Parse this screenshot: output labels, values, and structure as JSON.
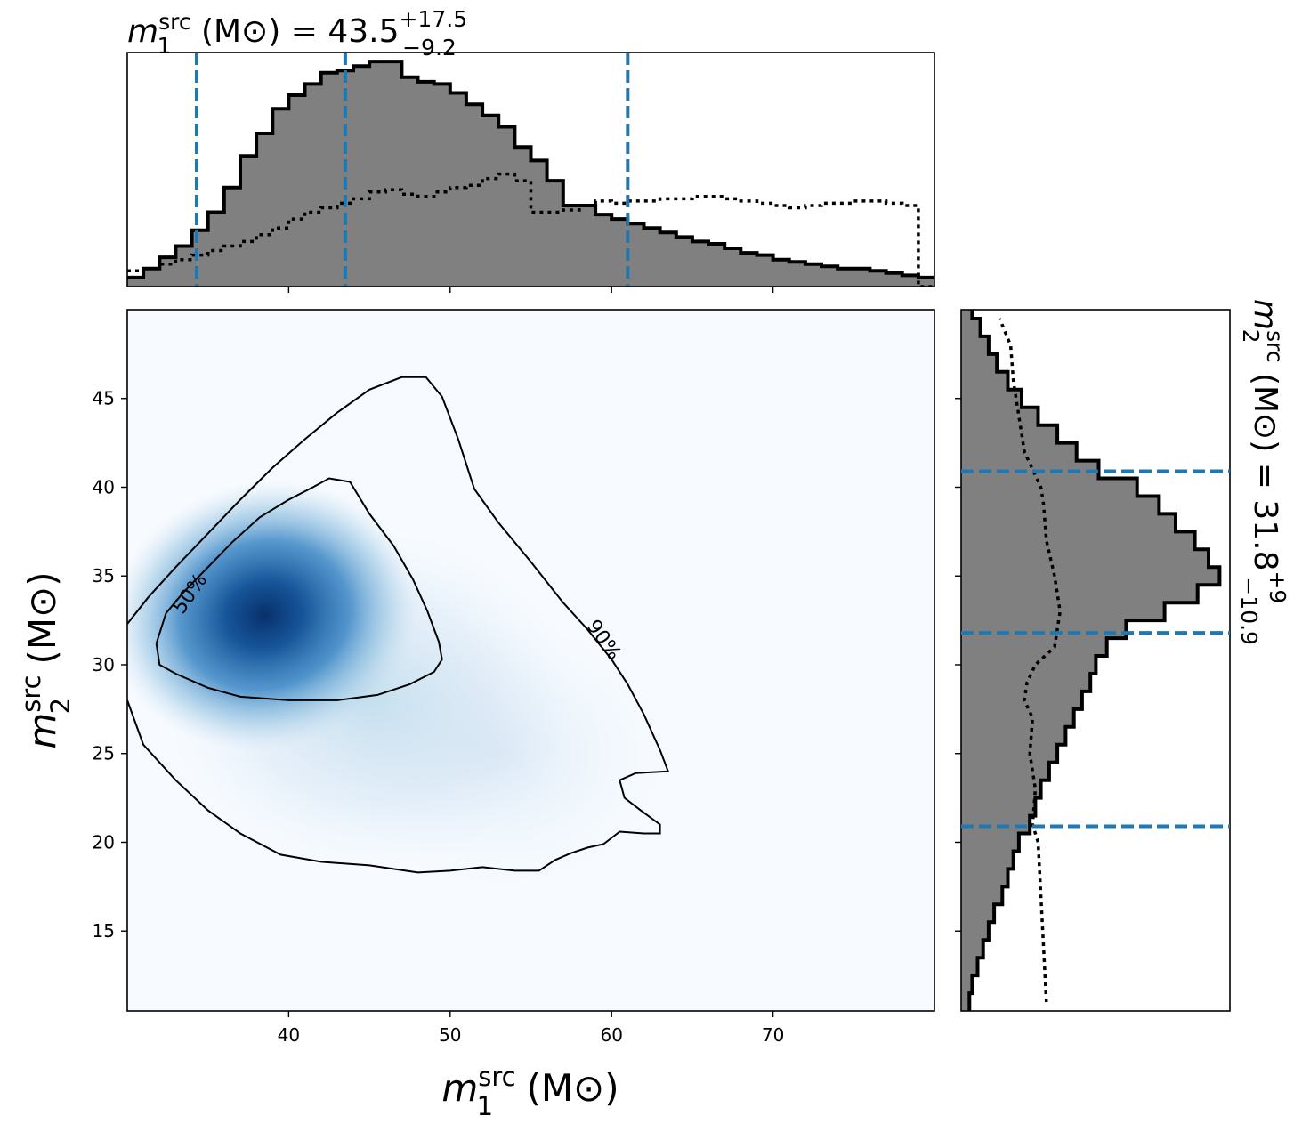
{
  "chart_data": {
    "type": "heatmap",
    "title": "",
    "x_symbol": "m",
    "x_subscript": "1",
    "x_superscript": "src",
    "x_unit": "(M⊙)",
    "y_symbol": "m",
    "y_subscript": "2",
    "y_superscript": "src",
    "y_unit": "(M⊙)",
    "xlim": [
      30,
      80
    ],
    "ylim": [
      10.5,
      50
    ],
    "x_ticks": [
      "40",
      "50",
      "60",
      "70"
    ],
    "y_ticks": [
      "15",
      "20",
      "25",
      "30",
      "35",
      "40",
      "45"
    ],
    "colormap": "Blues",
    "density_peak": {
      "m1": 38.5,
      "m2": 32.8
    },
    "contours": [
      {
        "label": "50%",
        "points": [
          [
            31.8,
            31.2
          ],
          [
            32.4,
            32.9
          ],
          [
            33.5,
            34.1
          ],
          [
            35.0,
            35.5
          ],
          [
            36.5,
            36.9
          ],
          [
            38.2,
            38.3
          ],
          [
            40.0,
            39.3
          ],
          [
            41.5,
            40.0
          ],
          [
            42.5,
            40.5
          ],
          [
            43.8,
            40.3
          ],
          [
            45.0,
            38.5
          ],
          [
            46.5,
            36.7
          ],
          [
            47.7,
            34.8
          ],
          [
            48.6,
            33.0
          ],
          [
            49.3,
            31.3
          ],
          [
            49.5,
            30.3
          ],
          [
            49.0,
            29.6
          ],
          [
            47.5,
            28.9
          ],
          [
            45.5,
            28.3
          ],
          [
            43.0,
            28.0
          ],
          [
            40.0,
            28.0
          ],
          [
            37.0,
            28.2
          ],
          [
            35.0,
            28.7
          ],
          [
            33.0,
            29.5
          ],
          [
            32.0,
            30.0
          ],
          [
            31.8,
            31.2
          ]
        ]
      },
      {
        "label": "90%",
        "points": [
          [
            30.0,
            32.3
          ],
          [
            31.3,
            33.8
          ],
          [
            33.0,
            35.5
          ],
          [
            35.0,
            37.4
          ],
          [
            37.0,
            39.3
          ],
          [
            39.0,
            41.1
          ],
          [
            41.0,
            42.7
          ],
          [
            43.0,
            44.2
          ],
          [
            45.0,
            45.5
          ],
          [
            47.0,
            46.2
          ],
          [
            48.5,
            46.2
          ],
          [
            49.5,
            45.1
          ],
          [
            50.5,
            42.7
          ],
          [
            51.5,
            39.9
          ],
          [
            53.0,
            38.0
          ],
          [
            55.0,
            35.8
          ],
          [
            57.0,
            33.5
          ],
          [
            58.5,
            32.0
          ],
          [
            60.0,
            30.3
          ],
          [
            61.0,
            28.9
          ],
          [
            62.0,
            27.2
          ],
          [
            63.0,
            25.2
          ],
          [
            63.5,
            24.0
          ],
          [
            61.5,
            23.9
          ],
          [
            60.5,
            23.5
          ],
          [
            60.8,
            22.5
          ],
          [
            61.8,
            21.8
          ],
          [
            63.0,
            21.0
          ],
          [
            63.0,
            20.5
          ],
          [
            62.0,
            20.5
          ],
          [
            60.5,
            20.6
          ],
          [
            59.5,
            19.9
          ],
          [
            58.5,
            19.7
          ],
          [
            57.5,
            19.4
          ],
          [
            56.5,
            19.0
          ],
          [
            55.5,
            18.4
          ],
          [
            54.0,
            18.4
          ],
          [
            52.0,
            18.6
          ],
          [
            50.0,
            18.4
          ],
          [
            48.0,
            18.3
          ],
          [
            45.0,
            18.7
          ],
          [
            42.0,
            18.9
          ],
          [
            39.5,
            19.3
          ],
          [
            37.0,
            20.5
          ],
          [
            35.0,
            21.8
          ],
          [
            33.0,
            23.5
          ],
          [
            31.0,
            25.5
          ],
          [
            30.0,
            28.0
          ]
        ]
      }
    ],
    "top_histogram": {
      "label": "m1",
      "annotation_symbol": "m",
      "annotation_subscript": "1",
      "annotation_superscript": "src",
      "annotation_unit": "(M⊙)",
      "annotation_median": "43.5",
      "annotation_plus": "+17.5",
      "annotation_minus": "−9.2",
      "quantile_lines": [
        34.3,
        43.5,
        61.0
      ],
      "bin_start": 30,
      "bin_width": 1,
      "posterior": [
        0.04,
        0.08,
        0.13,
        0.18,
        0.25,
        0.33,
        0.44,
        0.58,
        0.68,
        0.79,
        0.85,
        0.9,
        0.95,
        0.96,
        0.98,
        1.0,
        1.0,
        0.93,
        0.91,
        0.9,
        0.86,
        0.81,
        0.76,
        0.71,
        0.62,
        0.56,
        0.47,
        0.36,
        0.36,
        0.32,
        0.3,
        0.28,
        0.26,
        0.24,
        0.22,
        0.2,
        0.19,
        0.17,
        0.15,
        0.14,
        0.12,
        0.11,
        0.1,
        0.09,
        0.08,
        0.08,
        0.07,
        0.06,
        0.05,
        0.04
      ],
      "prior": [
        0.07,
        0.08,
        0.1,
        0.12,
        0.14,
        0.16,
        0.18,
        0.2,
        0.23,
        0.26,
        0.3,
        0.33,
        0.35,
        0.37,
        0.39,
        0.42,
        0.43,
        0.41,
        0.4,
        0.42,
        0.44,
        0.45,
        0.48,
        0.5,
        0.47,
        0.33,
        0.33,
        0.34,
        0.36,
        0.38,
        0.37,
        0.38,
        0.38,
        0.39,
        0.39,
        0.4,
        0.4,
        0.39,
        0.38,
        0.37,
        0.36,
        0.35,
        0.36,
        0.37,
        0.37,
        0.38,
        0.38,
        0.37,
        0.36,
        0.0
      ]
    },
    "right_histogram": {
      "label": "m2",
      "annotation_symbol": "m",
      "annotation_subscript": "2",
      "annotation_superscript": "src",
      "annotation_unit": "(M⊙)",
      "annotation_median": "31.8",
      "annotation_plus": "+9",
      "annotation_minus": "−10.9",
      "quantile_lines": [
        20.9,
        31.8,
        40.9
      ],
      "bin_start": 10.5,
      "bin_width": 1,
      "posterior": [
        0.03,
        0.04,
        0.06,
        0.08,
        0.1,
        0.12,
        0.15,
        0.17,
        0.19,
        0.21,
        0.25,
        0.27,
        0.29,
        0.32,
        0.35,
        0.38,
        0.41,
        0.44,
        0.47,
        0.49,
        0.53,
        0.6,
        0.74,
        0.86,
        0.94,
        0.9,
        0.85,
        0.78,
        0.72,
        0.64,
        0.5,
        0.42,
        0.35,
        0.28,
        0.22,
        0.17,
        0.13,
        0.1,
        0.07,
        0.04
      ]
    }
  }
}
